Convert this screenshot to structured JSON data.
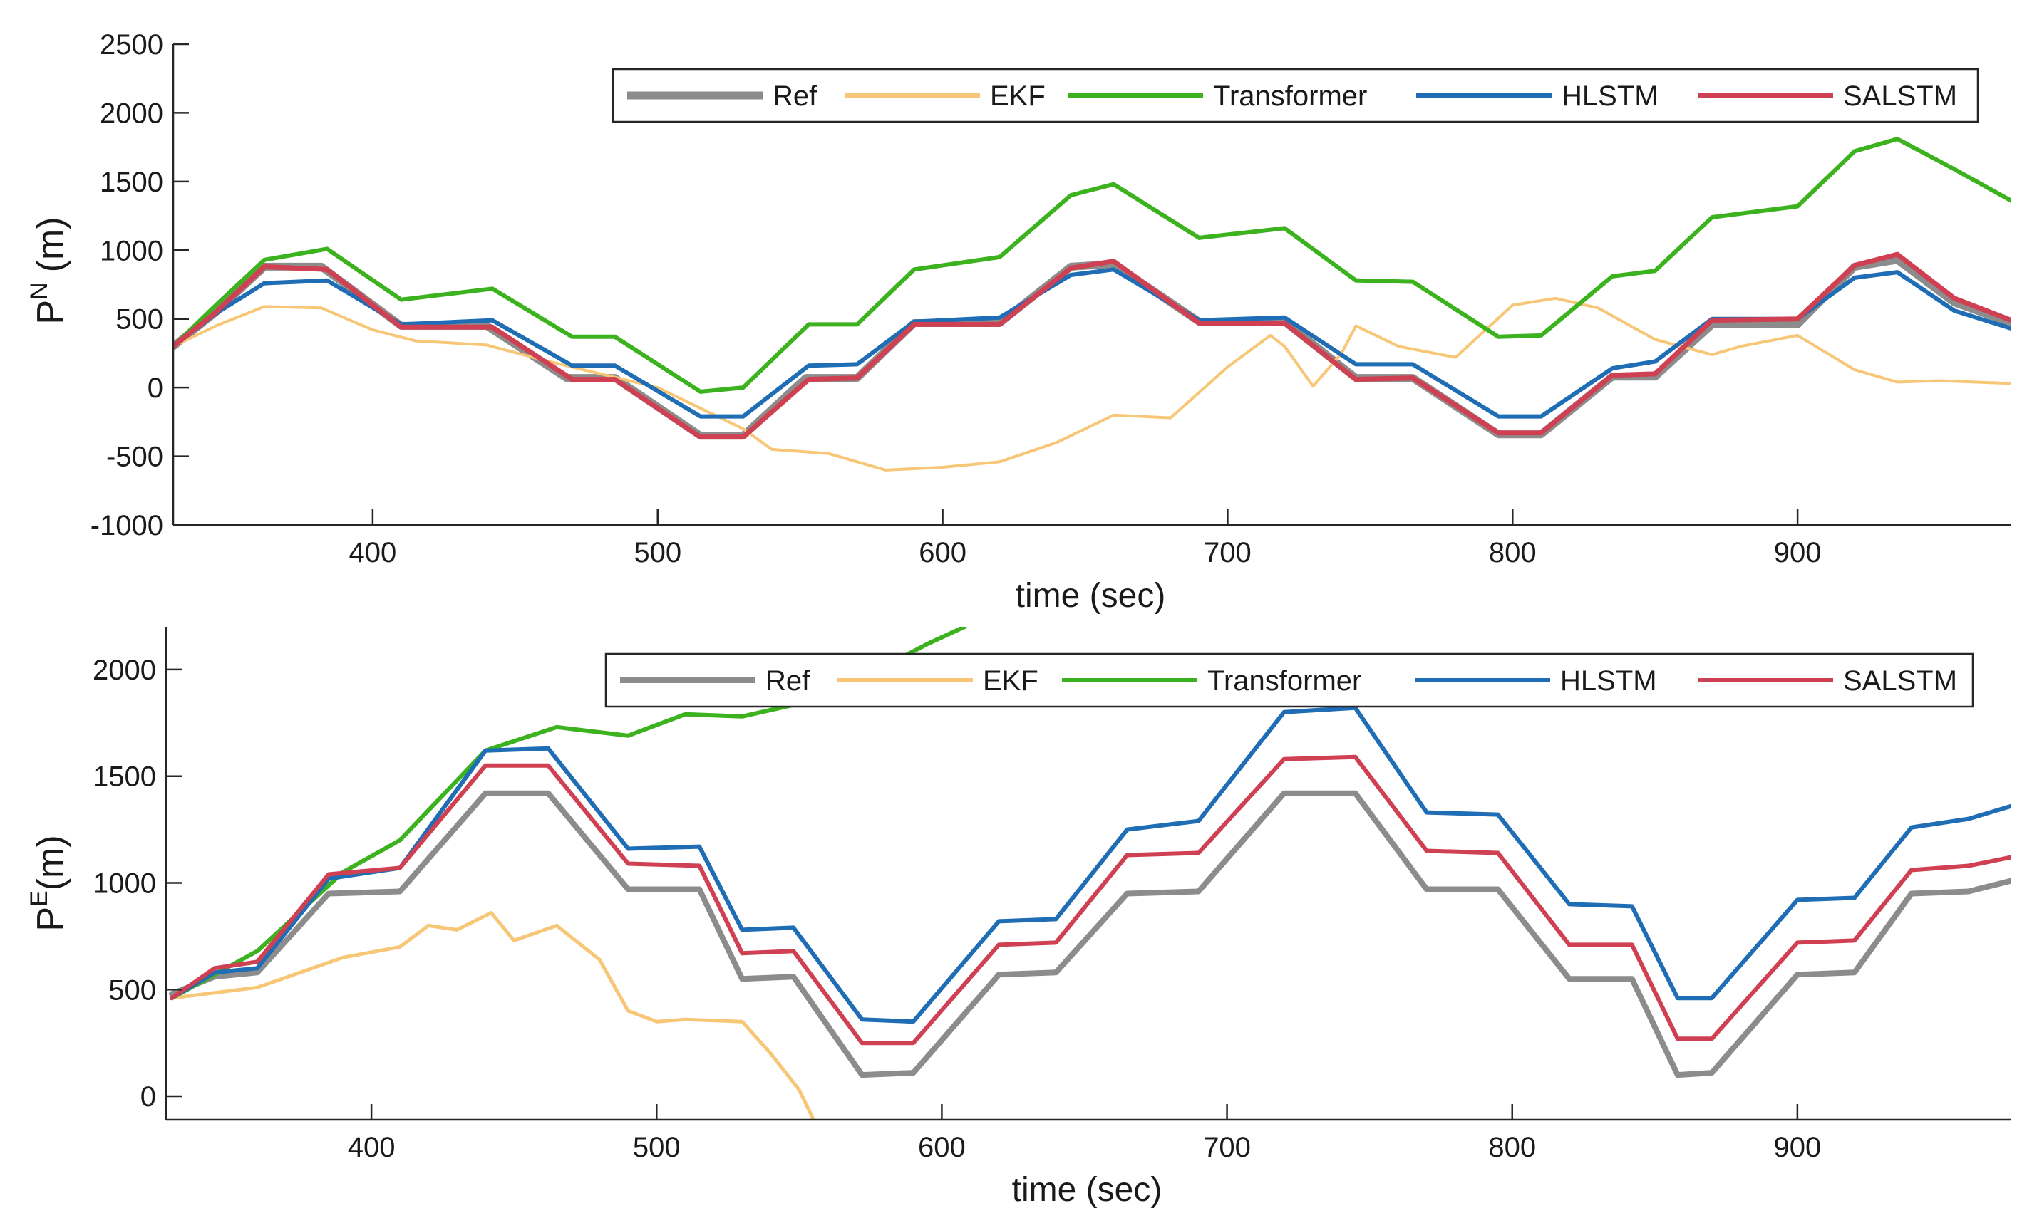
{
  "chart_data": [
    {
      "type": "line",
      "title": "",
      "xlabel": "time (sec)",
      "ylabel": "P",
      "ylabel_sup": "N",
      "ylabel_unit": "(m)",
      "xlim": [
        330,
        975
      ],
      "ylim": [
        -1000,
        2500
      ],
      "xticks": [
        400,
        500,
        600,
        700,
        800,
        900
      ],
      "yticks": [
        -1000,
        -500,
        0,
        500,
        1000,
        1500,
        2000,
        2500
      ],
      "legend_position": "top-right",
      "series": [
        {
          "name": "Ref",
          "color": "#8c8c8c",
          "x": [
            330,
            345,
            362,
            382,
            410,
            440,
            468,
            485,
            515,
            530,
            552,
            570,
            590,
            620,
            645,
            660,
            690,
            720,
            745,
            765,
            795,
            810,
            835,
            850,
            870,
            900,
            920,
            935,
            955,
            975
          ],
          "y": [
            300,
            550,
            880,
            880,
            450,
            450,
            70,
            70,
            -350,
            -350,
            70,
            70,
            470,
            470,
            880,
            900,
            480,
            480,
            70,
            70,
            -340,
            -340,
            80,
            80,
            460,
            460,
            880,
            930,
            620,
            470
          ]
        },
        {
          "name": "EKF",
          "color": "#f7c777",
          "x": [
            330,
            345,
            362,
            382,
            400,
            415,
            440,
            460,
            480,
            500,
            515,
            530,
            540,
            560,
            580,
            600,
            620,
            640,
            660,
            680,
            700,
            715,
            720,
            730,
            740,
            745,
            760,
            780,
            800,
            815,
            830,
            850,
            870,
            880,
            900,
            920,
            935,
            950,
            975
          ],
          "y": [
            300,
            450,
            590,
            580,
            420,
            340,
            310,
            200,
            100,
            0,
            -150,
            -300,
            -450,
            -480,
            -600,
            -580,
            -540,
            -400,
            -200,
            -220,
            150,
            380,
            300,
            10,
            250,
            450,
            300,
            220,
            600,
            650,
            580,
            350,
            240,
            300,
            380,
            130,
            40,
            50,
            30
          ]
        },
        {
          "name": "Transformer",
          "color": "#3cb21e",
          "x": [
            330,
            345,
            362,
            384,
            410,
            442,
            470,
            485,
            515,
            530,
            553,
            570,
            590,
            620,
            645,
            660,
            690,
            720,
            745,
            765,
            795,
            810,
            835,
            850,
            870,
            900,
            920,
            935,
            955,
            975
          ],
          "y": [
            300,
            600,
            930,
            1010,
            640,
            720,
            370,
            370,
            -30,
            0,
            460,
            460,
            860,
            950,
            1400,
            1480,
            1090,
            1160,
            780,
            770,
            370,
            380,
            810,
            850,
            1240,
            1320,
            1720,
            1810,
            1590,
            1360
          ]
        },
        {
          "name": "HLSTM",
          "color": "#1f6db5",
          "x": [
            330,
            345,
            362,
            384,
            410,
            442,
            470,
            485,
            515,
            530,
            553,
            570,
            590,
            620,
            645,
            660,
            690,
            720,
            745,
            765,
            795,
            810,
            835,
            850,
            870,
            900,
            920,
            935,
            955,
            975
          ],
          "y": [
            300,
            540,
            760,
            780,
            460,
            490,
            160,
            160,
            -210,
            -210,
            160,
            170,
            480,
            510,
            820,
            860,
            490,
            510,
            170,
            170,
            -210,
            -210,
            140,
            190,
            500,
            500,
            800,
            840,
            560,
            430
          ]
        },
        {
          "name": "SALSTM",
          "color": "#cf4052",
          "x": [
            330,
            345,
            362,
            384,
            410,
            442,
            470,
            485,
            515,
            530,
            553,
            570,
            590,
            620,
            645,
            660,
            690,
            720,
            745,
            765,
            795,
            810,
            835,
            850,
            870,
            900,
            920,
            935,
            955,
            975
          ],
          "y": [
            300,
            550,
            880,
            860,
            440,
            440,
            60,
            60,
            -360,
            -360,
            60,
            70,
            460,
            460,
            870,
            920,
            470,
            470,
            60,
            70,
            -330,
            -330,
            90,
            100,
            490,
            500,
            890,
            970,
            650,
            490
          ]
        }
      ]
    },
    {
      "type": "line",
      "title": "",
      "xlabel": "time (sec)",
      "ylabel": "P",
      "ylabel_sup": "E",
      "ylabel_unit": "(m)",
      "xlim": [
        328,
        975
      ],
      "ylim": [
        -110,
        2200
      ],
      "xticks": [
        400,
        500,
        600,
        700,
        800,
        900
      ],
      "yticks": [
        0,
        500,
        1000,
        1500,
        2000
      ],
      "legend_position": "top-right",
      "series": [
        {
          "name": "Ref",
          "color": "#8c8c8c",
          "x": [
            330,
            345,
            360,
            385,
            410,
            440,
            462,
            490,
            515,
            530,
            548,
            572,
            590,
            620,
            640,
            665,
            690,
            720,
            745,
            770,
            795,
            820,
            842,
            858,
            870,
            900,
            920,
            940,
            960,
            975
          ],
          "y": [
            480,
            560,
            580,
            950,
            960,
            1420,
            1420,
            970,
            970,
            550,
            560,
            100,
            110,
            570,
            580,
            950,
            960,
            1420,
            1420,
            970,
            970,
            550,
            550,
            100,
            110,
            570,
            580,
            950,
            960,
            1010
          ]
        },
        {
          "name": "EKF",
          "color": "#f7c777",
          "x": [
            330,
            360,
            390,
            410,
            420,
            430,
            442,
            450,
            465,
            480,
            490,
            500,
            510,
            530,
            540,
            550,
            555
          ],
          "y": [
            460,
            510,
            650,
            700,
            800,
            780,
            860,
            730,
            800,
            640,
            400,
            350,
            360,
            350,
            200,
            30,
            -110
          ]
        },
        {
          "name": "Transformer",
          "color": "#3cb21e",
          "x": [
            330,
            360,
            390,
            410,
            440,
            465,
            490,
            510,
            530,
            550,
            575,
            595,
            608
          ],
          "y": [
            460,
            680,
            1050,
            1200,
            1620,
            1730,
            1690,
            1790,
            1780,
            1840,
            1980,
            2120,
            2200
          ]
        },
        {
          "name": "HLSTM",
          "color": "#1f6db5",
          "x": [
            330,
            345,
            360,
            385,
            410,
            440,
            462,
            490,
            515,
            530,
            548,
            572,
            590,
            620,
            640,
            665,
            690,
            720,
            745,
            770,
            795,
            820,
            842,
            858,
            870,
            900,
            920,
            940,
            960,
            975
          ],
          "y": [
            460,
            580,
            600,
            1020,
            1070,
            1620,
            1630,
            1160,
            1170,
            780,
            790,
            360,
            350,
            820,
            830,
            1250,
            1290,
            1800,
            1820,
            1330,
            1320,
            900,
            890,
            460,
            460,
            920,
            930,
            1260,
            1300,
            1360
          ]
        },
        {
          "name": "SALSTM",
          "color": "#cf4052",
          "x": [
            330,
            345,
            360,
            385,
            410,
            440,
            462,
            490,
            515,
            530,
            548,
            572,
            590,
            620,
            640,
            665,
            690,
            720,
            745,
            770,
            795,
            820,
            842,
            858,
            870,
            900,
            920,
            940,
            960,
            975
          ],
          "y": [
            460,
            600,
            630,
            1040,
            1070,
            1550,
            1550,
            1090,
            1080,
            670,
            680,
            250,
            250,
            710,
            720,
            1130,
            1140,
            1580,
            1590,
            1150,
            1140,
            710,
            710,
            270,
            270,
            720,
            730,
            1060,
            1080,
            1120
          ]
        }
      ]
    }
  ]
}
